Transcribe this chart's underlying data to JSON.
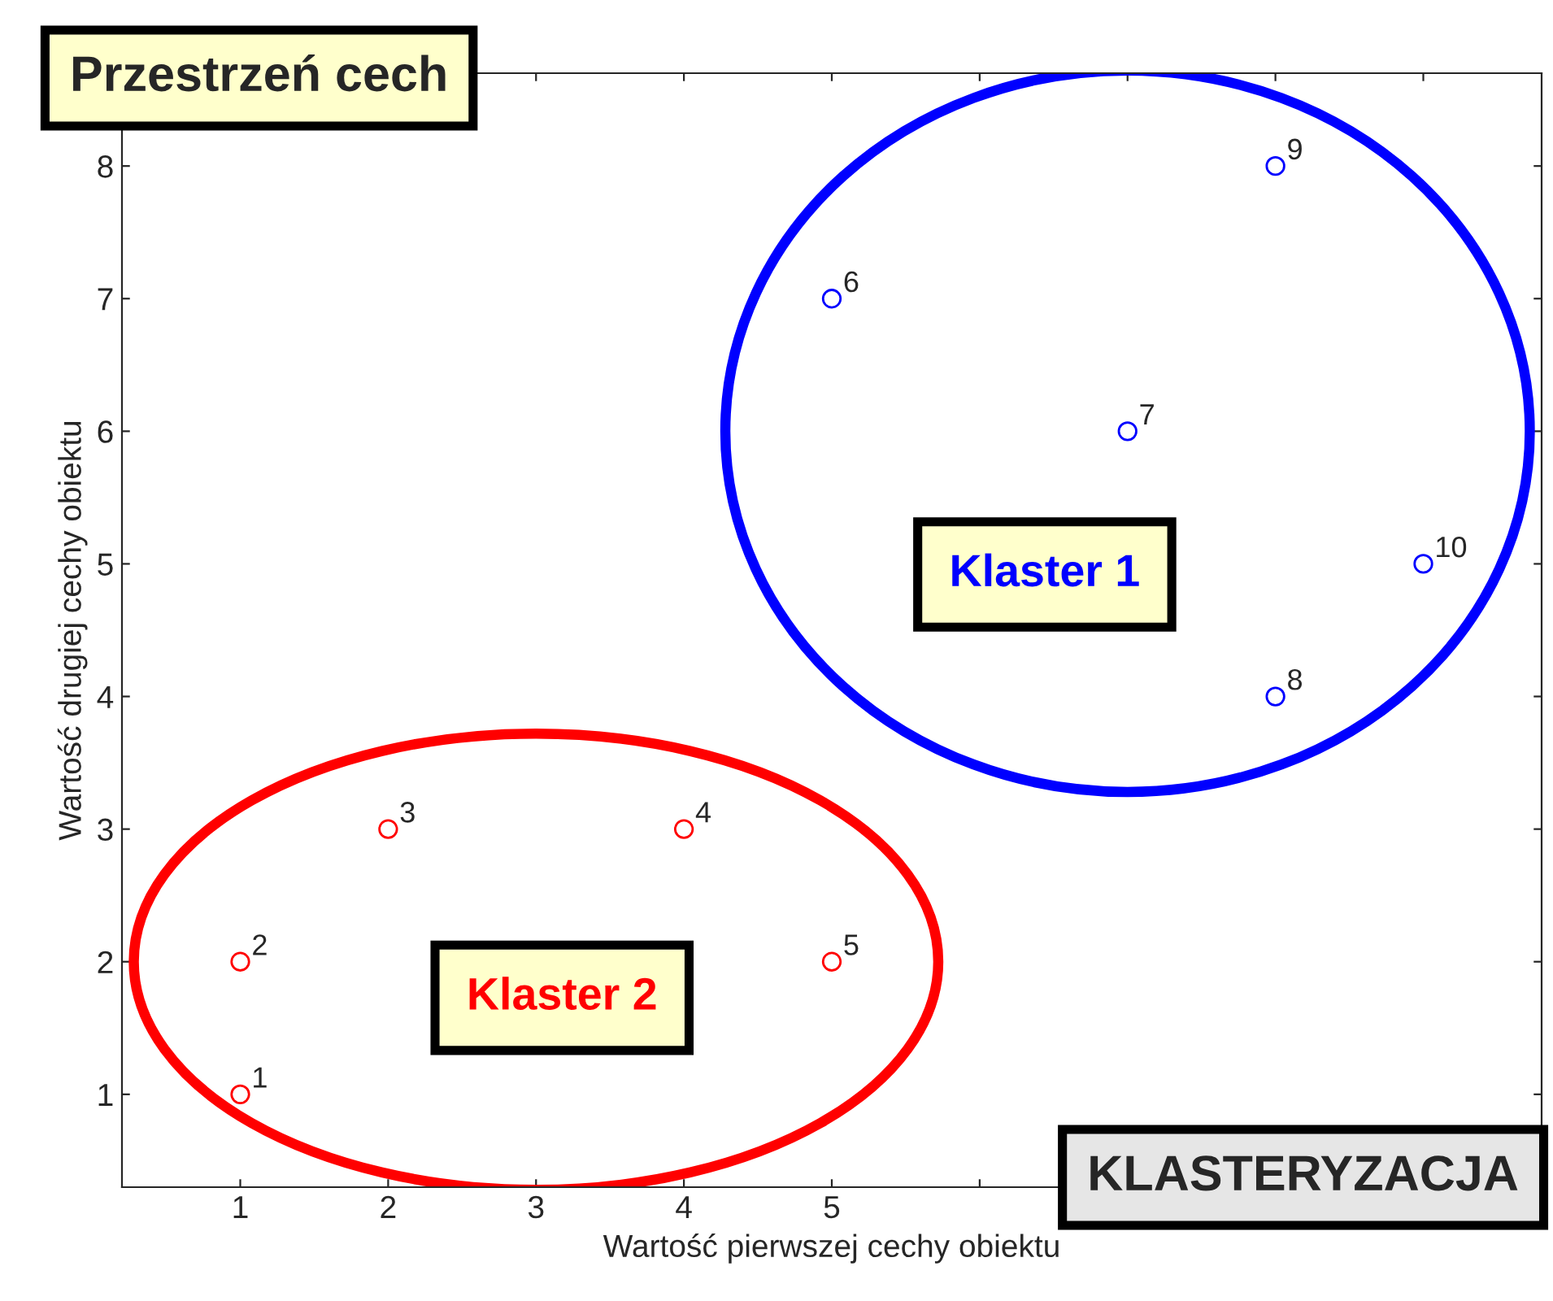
{
  "chart_data": {
    "type": "scatter",
    "title": "Przestrzeń cech",
    "xlabel": "Wartość pierwszej cechy obiektu",
    "ylabel": "Wartość drugiej cechy obiektu",
    "series": [
      {
        "name": "Klaster 2",
        "color": "#ff0000",
        "x": [
          1,
          1,
          2,
          4,
          5
        ],
        "values": [
          1,
          2,
          3,
          3,
          2
        ]
      },
      {
        "name": "Klaster 1",
        "color": "#0000ff",
        "x": [
          5,
          7,
          8,
          8,
          9
        ],
        "values": [
          7,
          6,
          4,
          8,
          5
        ]
      }
    ],
    "annotations": [
      {
        "text": "1",
        "x": 1,
        "y": 1
      },
      {
        "text": "2",
        "x": 1,
        "y": 2
      },
      {
        "text": "3",
        "x": 2,
        "y": 3
      },
      {
        "text": "4",
        "x": 4,
        "y": 3
      },
      {
        "text": "5",
        "x": 5,
        "y": 2
      },
      {
        "text": "6",
        "x": 5,
        "y": 7
      },
      {
        "text": "7",
        "x": 7,
        "y": 6
      },
      {
        "text": "8",
        "x": 8,
        "y": 4
      },
      {
        "text": "9",
        "x": 8,
        "y": 8
      },
      {
        "text": "10",
        "x": 9,
        "y": 5
      },
      "KLASTERYZACJA"
    ],
    "xlim": [
      0.2,
      9.8
    ],
    "ylim": [
      0.3,
      8.7
    ],
    "xticks": [
      1,
      2,
      3,
      4,
      5,
      {
        "value": 6,
        "label": null
      },
      {
        "value": 7,
        "label": null
      },
      {
        "value": 8,
        "label": null
      },
      {
        "value": 9,
        "label": null
      }
    ],
    "yticks": [
      1,
      2,
      3,
      4,
      5,
      6,
      7,
      8
    ],
    "marker": "circle",
    "grid": false,
    "legend": false
  }
}
